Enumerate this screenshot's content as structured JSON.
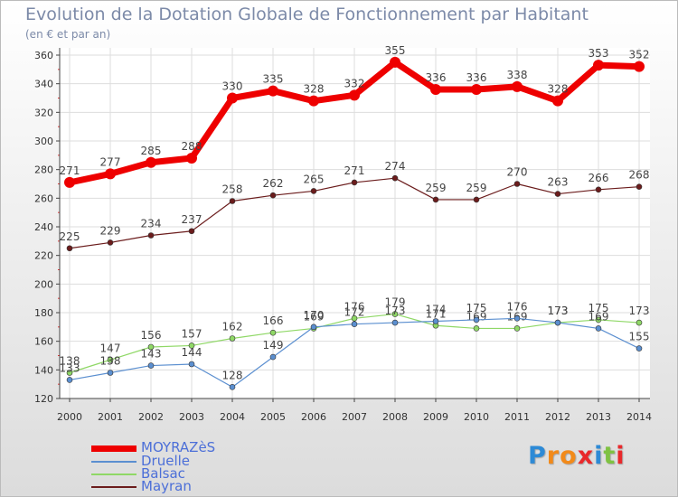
{
  "chart_data": {
    "type": "line",
    "title": "Evolution de la Dotation Globale de Fonctionnement par Habitant",
    "subtitle": "(en € et par an)",
    "xlabel": "",
    "ylabel": "",
    "categories": [
      "2000",
      "2001",
      "2002",
      "2003",
      "2004",
      "2005",
      "2006",
      "2007",
      "2008",
      "2009",
      "2010",
      "2011",
      "2012",
      "2013",
      "2014"
    ],
    "ylim": [
      120,
      360
    ],
    "yticks": [
      120,
      140,
      160,
      180,
      200,
      220,
      240,
      260,
      280,
      300,
      320,
      340,
      360
    ],
    "grid": true,
    "legend_position": "bottom-left",
    "series": [
      {
        "name": "Mayran",
        "color": "#6b1c1c",
        "values": [
          225,
          229,
          234,
          237,
          258,
          262,
          265,
          271,
          274,
          259,
          259,
          270,
          263,
          266,
          268
        ]
      },
      {
        "name": "Balsac",
        "color": "#8fd866",
        "values": [
          138,
          147,
          156,
          157,
          162,
          166,
          169,
          176,
          179,
          171,
          169,
          169,
          173,
          175,
          173
        ]
      },
      {
        "name": "Druelle",
        "color": "#5b8fd0",
        "values": [
          133,
          138,
          143,
          144,
          128,
          149,
          170,
          172,
          173,
          174,
          175,
          176,
          173,
          169,
          155
        ]
      },
      {
        "name": "MOYRAZèS",
        "color": "#ee0000",
        "values": [
          271,
          277,
          285,
          288,
          330,
          335,
          328,
          332,
          355,
          336,
          336,
          338,
          328,
          353,
          352
        ]
      }
    ],
    "legend": [
      "MOYRAZèS",
      "Druelle",
      "Balsac",
      "Mayran"
    ]
  },
  "logo": {
    "text": "Proxiti",
    "letters": [
      "P",
      "r",
      "o",
      "x",
      "i",
      "t",
      "i"
    ],
    "colors": [
      "#2d8ad6",
      "#f28a1a",
      "#f28a1a",
      "#e9282b",
      "#2d8ad6",
      "#7fc242",
      "#e9282b"
    ]
  }
}
